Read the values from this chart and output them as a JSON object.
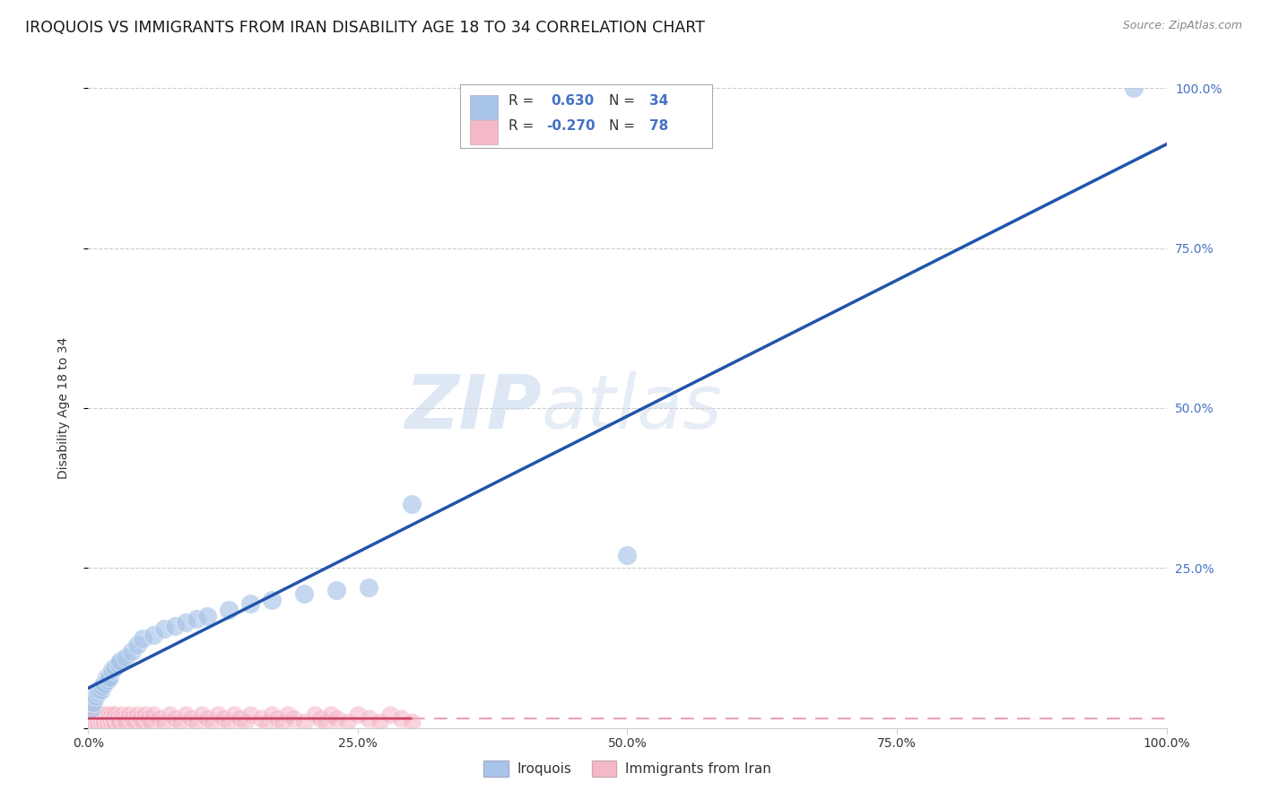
{
  "title": "IROQUOIS VS IMMIGRANTS FROM IRAN DISABILITY AGE 18 TO 34 CORRELATION CHART",
  "source": "Source: ZipAtlas.com",
  "ylabel": "Disability Age 18 to 34",
  "xlabel": "",
  "watermark_zip": "ZIP",
  "watermark_atlas": "atlas",
  "iroquois_R": 0.63,
  "iroquois_N": 34,
  "iran_R": -0.27,
  "iran_N": 78,
  "iroquois_color": "#a8c4e8",
  "iran_color": "#f5b8c8",
  "iroquois_line_color": "#2255aa",
  "iran_line_solid_color": "#cc4466",
  "iran_line_dash_color": "#e8a0b8",
  "xlim": [
    0,
    1.0
  ],
  "ylim": [
    0,
    1.0
  ],
  "xticks": [
    0.0,
    0.25,
    0.5,
    0.75,
    1.0
  ],
  "xtick_labels": [
    "0.0%",
    "25.0%",
    "50.0%",
    "75.0%",
    "100.0%"
  ],
  "ytick_positions": [
    0.0,
    0.25,
    0.5,
    0.75,
    1.0
  ],
  "ytick_labels_right": [
    "",
    "25.0%",
    "50.0%",
    "75.0%",
    "100.0%"
  ],
  "iroquois_x": [
    0.003,
    0.005,
    0.007,
    0.009,
    0.01,
    0.012,
    0.013,
    0.015,
    0.017,
    0.018,
    0.02,
    0.022,
    0.025,
    0.028,
    0.03,
    0.035,
    0.04,
    0.045,
    0.05,
    0.06,
    0.07,
    0.08,
    0.09,
    0.1,
    0.11,
    0.13,
    0.15,
    0.17,
    0.2,
    0.23,
    0.26,
    0.3,
    0.5,
    0.97
  ],
  "iroquois_y": [
    0.03,
    0.04,
    0.05,
    0.055,
    0.06,
    0.06,
    0.065,
    0.07,
    0.08,
    0.075,
    0.08,
    0.09,
    0.095,
    0.1,
    0.105,
    0.11,
    0.12,
    0.13,
    0.14,
    0.145,
    0.155,
    0.16,
    0.165,
    0.17,
    0.175,
    0.185,
    0.195,
    0.2,
    0.21,
    0.215,
    0.22,
    0.35,
    0.27,
    1.0
  ],
  "iran_x": [
    0.001,
    0.002,
    0.003,
    0.004,
    0.005,
    0.006,
    0.007,
    0.008,
    0.009,
    0.01,
    0.011,
    0.012,
    0.013,
    0.014,
    0.015,
    0.016,
    0.017,
    0.018,
    0.019,
    0.02,
    0.021,
    0.022,
    0.023,
    0.024,
    0.025,
    0.027,
    0.029,
    0.031,
    0.033,
    0.035,
    0.038,
    0.04,
    0.043,
    0.045,
    0.048,
    0.05,
    0.053,
    0.055,
    0.058,
    0.06,
    0.065,
    0.07,
    0.075,
    0.08,
    0.085,
    0.09,
    0.095,
    0.1,
    0.105,
    0.11,
    0.115,
    0.12,
    0.125,
    0.13,
    0.135,
    0.14,
    0.145,
    0.15,
    0.16,
    0.165,
    0.17,
    0.175,
    0.18,
    0.185,
    0.19,
    0.2,
    0.21,
    0.215,
    0.22,
    0.225,
    0.23,
    0.24,
    0.25,
    0.26,
    0.27,
    0.28,
    0.29,
    0.3
  ],
  "iran_y": [
    0.01,
    0.015,
    0.01,
    0.02,
    0.015,
    0.01,
    0.02,
    0.015,
    0.01,
    0.02,
    0.015,
    0.01,
    0.02,
    0.015,
    0.01,
    0.02,
    0.015,
    0.01,
    0.02,
    0.015,
    0.01,
    0.02,
    0.015,
    0.01,
    0.02,
    0.015,
    0.01,
    0.02,
    0.015,
    0.01,
    0.02,
    0.015,
    0.01,
    0.02,
    0.015,
    0.01,
    0.02,
    0.015,
    0.01,
    0.02,
    0.015,
    0.01,
    0.02,
    0.015,
    0.01,
    0.02,
    0.015,
    0.01,
    0.02,
    0.015,
    0.01,
    0.02,
    0.015,
    0.01,
    0.02,
    0.015,
    0.01,
    0.02,
    0.015,
    0.01,
    0.02,
    0.015,
    0.01,
    0.02,
    0.015,
    0.01,
    0.02,
    0.015,
    0.01,
    0.02,
    0.015,
    0.01,
    0.02,
    0.015,
    0.01,
    0.02,
    0.015,
    0.01
  ],
  "background_color": "#ffffff",
  "grid_color": "#cccccc",
  "title_fontsize": 12.5,
  "axis_color": "#4472c4",
  "text_color": "#333333"
}
